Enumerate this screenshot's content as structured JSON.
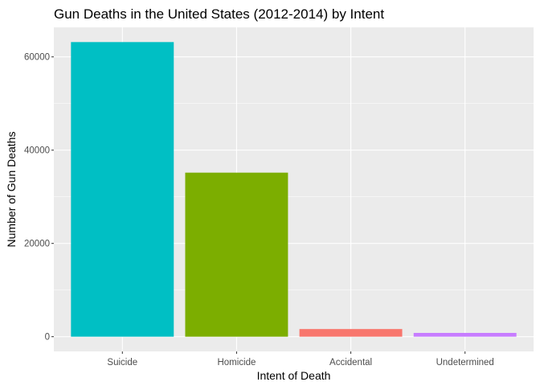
{
  "chart_data": {
    "type": "bar",
    "title": "Gun Deaths in the United States (2012-2014) by Intent",
    "xlabel": "Intent of Death",
    "ylabel": "Number of Gun Deaths",
    "categories": [
      "Suicide",
      "Homicide",
      "Accidental",
      "Undetermined"
    ],
    "values": [
      63175,
      35176,
      1639,
      807
    ],
    "colors": [
      "#00BFC4",
      "#7CAE00",
      "#F8766D",
      "#C77CFF"
    ],
    "ylim": [
      -3160,
      66335
    ],
    "yticks": [
      0,
      20000,
      40000,
      60000
    ],
    "ytick_labels": [
      "0",
      "20000",
      "40000",
      "60000"
    ],
    "grid": true,
    "panel_background": "#EBEBEB",
    "grid_color": "#FFFFFF",
    "legend": "none"
  }
}
